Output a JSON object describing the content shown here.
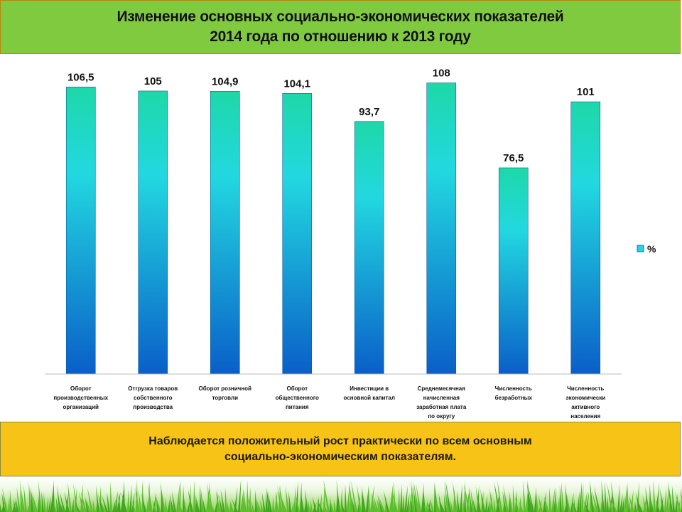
{
  "title": {
    "line1": "Изменение основных социально-экономических показателей",
    "line2": "2014 года по отношению к 2013 году"
  },
  "colors": {
    "title_bg": "#7fca3f",
    "note_bg": "#f7c316",
    "bar_top": "#1ed8a8",
    "bar_mid": "#22d8e0",
    "bar_bottom": "#0a5fc8",
    "grass": "#3fa61e"
  },
  "chart_data": {
    "type": "bar",
    "categories": [
      [
        "Оборот",
        "производственных",
        "организаций"
      ],
      [
        "Отгрузка товаров",
        "собственного",
        "производства"
      ],
      [
        "Оборот розничной",
        "торговли"
      ],
      [
        "Оборот",
        "общественного",
        "питания"
      ],
      [
        "Инвестиции в",
        "основной капитал"
      ],
      [
        "Среднемесячная",
        "начисленная",
        "заработная плата",
        "по округу"
      ],
      [
        "Численность",
        "безработных"
      ],
      [
        "Численность",
        "экономически",
        "активного",
        "населения"
      ]
    ],
    "series": [
      {
        "name": "%",
        "values": [
          106.5,
          105,
          104.9,
          104.1,
          93.7,
          108,
          76.5,
          101
        ],
        "labels": [
          "106,5",
          "105",
          "104,9",
          "104,1",
          "93,7",
          "108",
          "76,5",
          "101"
        ]
      }
    ],
    "ylim": [
      0,
      110
    ],
    "grid": false,
    "legend": "right"
  },
  "note": {
    "line1": "Наблюдается положительный рост практически по всем основным",
    "line2": "социально-экономическим показателям."
  }
}
